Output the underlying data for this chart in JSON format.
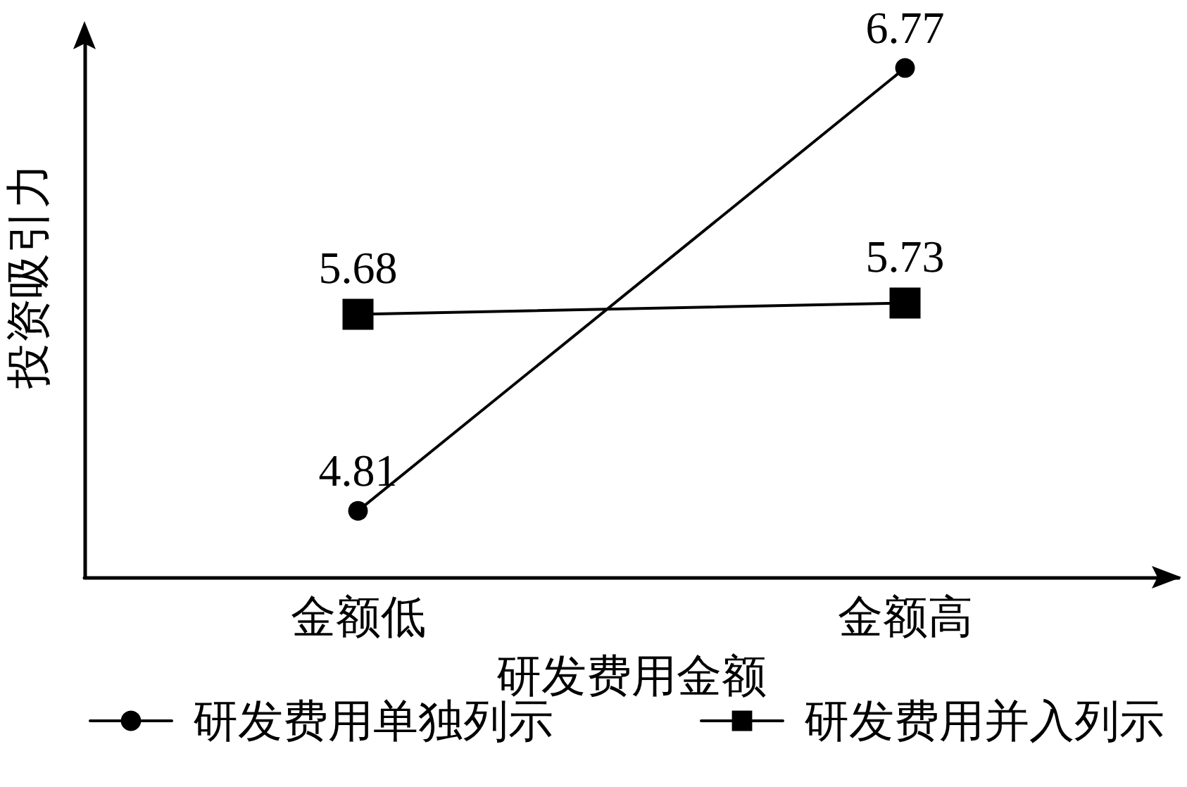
{
  "chart_data": {
    "type": "line",
    "xlabel": "研发费用金额",
    "ylabel": "投资吸引力",
    "categories": [
      "金额低",
      "金额高"
    ],
    "series": [
      {
        "name": "研发费用单独列示",
        "color": "#000000",
        "marker": "circle",
        "values": [
          4.81,
          6.77
        ]
      },
      {
        "name": "研发费用并入列示",
        "color": "#000000",
        "marker": "square",
        "values": [
          5.68,
          5.73
        ]
      }
    ],
    "data_labels": true,
    "legend": "bottom",
    "tick_labels": "x"
  }
}
